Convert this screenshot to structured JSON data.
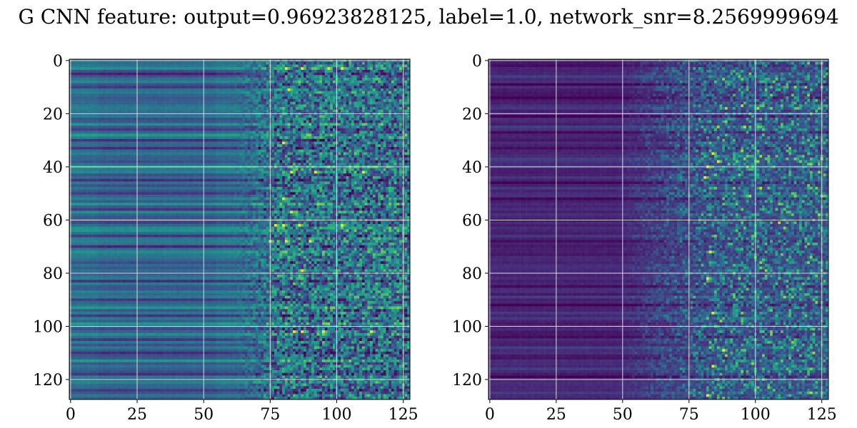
{
  "figure": {
    "title": "G CNN feature: output=0.96923828125, label=1.0, network_snr=8.2569999694"
  },
  "chart_data": [
    {
      "type": "heatmap",
      "colormap": "viridis",
      "rows": 128,
      "cols": 128,
      "xlim": [
        0,
        127
      ],
      "ylim": [
        127,
        0
      ],
      "xticks": [
        0,
        25,
        50,
        75,
        100,
        125
      ],
      "yticks": [
        0,
        20,
        40,
        60,
        80,
        100,
        120
      ],
      "grid": true,
      "title": "",
      "xlabel": "",
      "ylabel": "",
      "description_of_values": "left panel: mid-level teal background for columns 0-75, stronger noisy texture for columns 75-127 with bright yellow spots near rows 3, 42, 62, 68, 102",
      "hot_rows": [
        3,
        11,
        31,
        42,
        44,
        52,
        57,
        62,
        63,
        68,
        79,
        102,
        103
      ],
      "dark_rows": [
        5,
        10,
        22,
        26,
        30,
        33,
        45,
        50,
        56,
        61,
        66,
        70,
        83,
        90,
        96,
        101,
        105,
        110,
        118,
        124
      ],
      "bright_rows": [
        0,
        8,
        17,
        24,
        28,
        40,
        54,
        64,
        72,
        87,
        93,
        99,
        113,
        121
      ],
      "hot_spots": [
        [
          3,
          81
        ],
        [
          3,
          87
        ],
        [
          3,
          97
        ],
        [
          3,
          102
        ],
        [
          11,
          82
        ],
        [
          31,
          80
        ],
        [
          42,
          83
        ],
        [
          42,
          92
        ],
        [
          42,
          110
        ],
        [
          52,
          80
        ],
        [
          57,
          83
        ],
        [
          62,
          77
        ],
        [
          62,
          80
        ],
        [
          62,
          86
        ],
        [
          62,
          102
        ],
        [
          68,
          75
        ],
        [
          68,
          81
        ],
        [
          68,
          90
        ],
        [
          79,
          87
        ],
        [
          102,
          84
        ],
        [
          102,
          87
        ],
        [
          102,
          95
        ],
        [
          102,
          113
        ]
      ],
      "base_level": 0.35,
      "noise_level": 0.45
    },
    {
      "type": "heatmap",
      "colormap": "viridis",
      "rows": 128,
      "cols": 128,
      "xlim": [
        0,
        127
      ],
      "ylim": [
        127,
        0
      ],
      "xticks": [
        0,
        25,
        50,
        75,
        100,
        125
      ],
      "yticks": [
        0,
        20,
        40,
        60,
        80,
        100,
        120
      ],
      "grid": true,
      "title": "",
      "xlabel": "",
      "ylabel": "",
      "description_of_values": "right panel: dark purple background for columns 0-50, increasing noisy texture for columns 55-127 with a few yellow spots near column 84",
      "hot_rows": [
        35,
        38,
        40,
        44,
        95,
        109,
        115,
        126
      ],
      "dark_rows": [
        2,
        9,
        14,
        21,
        27,
        33,
        46,
        52,
        60,
        68,
        73,
        85,
        92,
        104,
        112,
        119
      ],
      "bright_rows": [
        6,
        18,
        25,
        37,
        48,
        58,
        66,
        77,
        89,
        97,
        108,
        116,
        125
      ],
      "hot_spots": [
        [
          35,
          84
        ],
        [
          38,
          86
        ],
        [
          40,
          82
        ],
        [
          44,
          81
        ],
        [
          72,
          83
        ],
        [
          82,
          82
        ],
        [
          95,
          84
        ],
        [
          109,
          88
        ],
        [
          115,
          84
        ],
        [
          126,
          82
        ]
      ],
      "base_level": 0.1,
      "noise_level": 0.4
    }
  ]
}
